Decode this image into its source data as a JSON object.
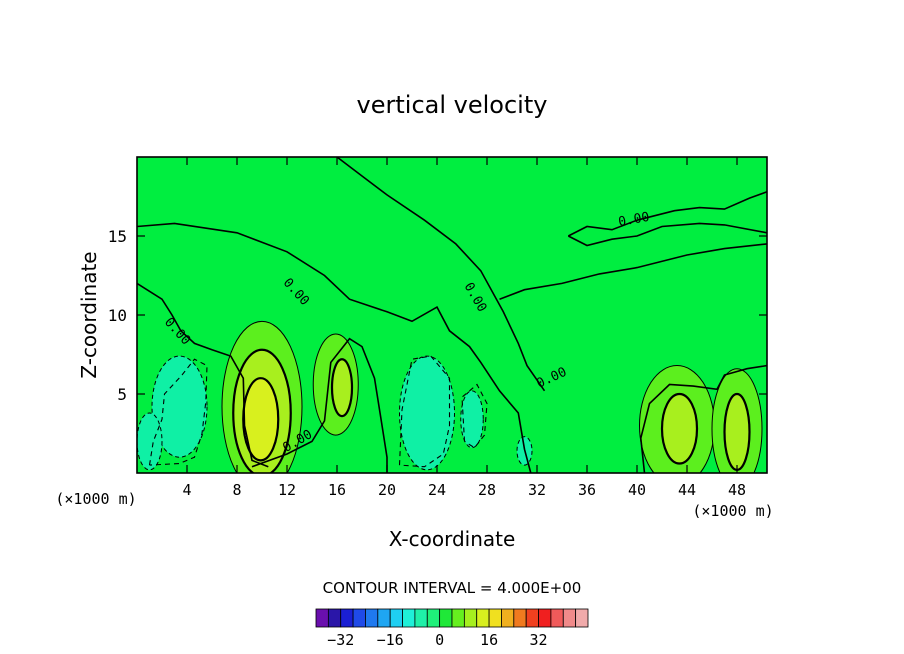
{
  "chart_data": {
    "type": "contour",
    "title": "vertical velocity",
    "xlabel": "X-coordinate",
    "ylabel": "Z-coordinate",
    "x_unit": "(×1000 m)",
    "x_unit_right": "(×1000 m)",
    "xlim": [
      0,
      50.4
    ],
    "ylim": [
      0,
      20
    ],
    "x_ticks": [
      4,
      8,
      12,
      16,
      20,
      24,
      28,
      32,
      36,
      40,
      44,
      48
    ],
    "y_ticks": [
      5,
      10,
      15
    ],
    "contour_interval_text": "CONTOUR INTERVAL = 4.000E+00",
    "contour_interval": 4.0,
    "contour_labels": [
      "0.00",
      "0.00",
      "0.00",
      "0.00",
      "0.00",
      "0.00"
    ],
    "colorbar": {
      "tick_labels": [
        "−32",
        "−16",
        "0",
        "16",
        "32"
      ],
      "tick_values": [
        -32,
        -16,
        0,
        16,
        32
      ],
      "colors": [
        "#6a0fae",
        "#2a16a8",
        "#1a1fd4",
        "#1f4ae8",
        "#1f79ef",
        "#1fa6f2",
        "#1fcff2",
        "#1ff0d8",
        "#1ff0a8",
        "#1ff07a",
        "#1fe838",
        "#66ef1f",
        "#a6ef1f",
        "#d8ef1f",
        "#f0e01f",
        "#f0b01f",
        "#f07a1f",
        "#f0401f",
        "#f01f1f",
        "#f05a5a",
        "#f08a8a",
        "#f0aaaa"
      ]
    },
    "background_fill": "#00ee40",
    "regions": [
      {
        "kind": "shade",
        "value": -8,
        "color": "#0ff0a5",
        "x": 3.4,
        "z": 4.2,
        "rx": 2.2,
        "rz": 3.2
      },
      {
        "kind": "shade",
        "value": -8,
        "color": "#0ff0a5",
        "x": 1.0,
        "z": 2.0,
        "rx": 1.0,
        "rz": 1.8
      },
      {
        "kind": "shade",
        "value": -8,
        "color": "#0ff0a5",
        "x": 23.2,
        "z": 3.8,
        "rx": 2.2,
        "rz": 3.6
      },
      {
        "kind": "shade",
        "value": -8,
        "color": "#0ff0a5",
        "x": 26.8,
        "z": 3.4,
        "rx": 0.9,
        "rz": 1.8
      },
      {
        "kind": "shade",
        "value": -8,
        "color": "#0ff0a5",
        "x": 31.0,
        "z": 1.4,
        "rx": 0.6,
        "rz": 0.9
      },
      {
        "kind": "shade",
        "value": 4,
        "color": "#5cef1e",
        "x": 15.9,
        "z": 5.6,
        "rx": 1.8,
        "rz": 3.2
      },
      {
        "kind": "shade",
        "value": 8,
        "color": "#a8ef1e",
        "x": 16.4,
        "z": 5.4,
        "rx": 0.8,
        "rz": 1.8
      },
      {
        "kind": "shade",
        "value": 4,
        "color": "#5cef1e",
        "x": 10.0,
        "z": 4.2,
        "rx": 3.2,
        "rz": 5.4
      },
      {
        "kind": "shade",
        "value": 8,
        "color": "#a8ef1e",
        "x": 10.0,
        "z": 3.8,
        "rx": 2.3,
        "rz": 4.0
      },
      {
        "kind": "shade",
        "value": 12,
        "color": "#d8f01e",
        "x": 9.9,
        "z": 3.4,
        "rx": 1.4,
        "rz": 2.6
      },
      {
        "kind": "shade",
        "value": 4,
        "color": "#5cef1e",
        "x": 43.2,
        "z": 3.0,
        "rx": 3.0,
        "rz": 3.8
      },
      {
        "kind": "shade",
        "value": 8,
        "color": "#a8ef1e",
        "x": 43.4,
        "z": 2.8,
        "rx": 1.4,
        "rz": 2.2
      },
      {
        "kind": "shade",
        "value": 4,
        "color": "#5cef1e",
        "x": 48.0,
        "z": 2.8,
        "rx": 2.0,
        "rz": 3.8
      },
      {
        "kind": "shade",
        "value": 8,
        "color": "#a8ef1e",
        "x": 48.0,
        "z": 2.6,
        "rx": 1.0,
        "rz": 2.4
      }
    ],
    "zero_contours": [
      [
        [
          0,
          15.6
        ],
        [
          3,
          15.8
        ],
        [
          8,
          15.2
        ],
        [
          12,
          14.0
        ],
        [
          15,
          12.5
        ],
        [
          17,
          11.0
        ],
        [
          20,
          10.2
        ],
        [
          22,
          9.6
        ],
        [
          24,
          10.5
        ],
        [
          25,
          9.0
        ],
        [
          26.6,
          8.0
        ],
        [
          27.5,
          7.0
        ],
        [
          29,
          5.2
        ],
        [
          30.5,
          3.8
        ],
        [
          31,
          1.5
        ],
        [
          31.5,
          0
        ]
      ],
      [
        [
          0,
          12
        ],
        [
          2,
          11.0
        ],
        [
          2.8,
          10.0
        ],
        [
          3.5,
          9.0
        ],
        [
          4.6,
          8.2
        ],
        [
          6,
          7.8
        ],
        [
          7.5,
          7.4
        ],
        [
          8.5,
          6.0
        ],
        [
          8.6,
          3.0
        ],
        [
          9.2,
          0.8
        ],
        [
          10.5,
          0.4
        ]
      ],
      [
        [
          16,
          20
        ],
        [
          18,
          18.8
        ],
        [
          20,
          17.6
        ],
        [
          23,
          16.0
        ],
        [
          25.5,
          14.5
        ],
        [
          27.5,
          12.8
        ],
        [
          29.3,
          10.2
        ],
        [
          30.5,
          8.2
        ],
        [
          31.2,
          6.8
        ],
        [
          32.6,
          5.2
        ]
      ],
      [
        [
          29,
          11.0
        ],
        [
          31,
          11.6
        ],
        [
          34,
          12.0
        ],
        [
          37,
          12.6
        ],
        [
          40,
          13.0
        ],
        [
          44,
          13.8
        ],
        [
          47,
          14.2
        ],
        [
          50.4,
          14.5
        ]
      ],
      [
        [
          34.5,
          15.0
        ],
        [
          36,
          15.6
        ],
        [
          38,
          15.4
        ],
        [
          40,
          16.0
        ],
        [
          43,
          16.6
        ],
        [
          45,
          16.8
        ],
        [
          47,
          16.7
        ],
        [
          49,
          17.4
        ],
        [
          50.4,
          17.8
        ]
      ],
      [
        [
          34.5,
          15.0
        ],
        [
          36,
          14.4
        ],
        [
          38,
          14.8
        ],
        [
          40,
          15.0
        ],
        [
          42,
          15.6
        ],
        [
          45,
          15.8
        ],
        [
          47,
          15.7
        ],
        [
          50.4,
          15.2
        ]
      ],
      [
        [
          40.6,
          0
        ],
        [
          40.3,
          2.2
        ],
        [
          41.0,
          4.4
        ],
        [
          42.6,
          5.6
        ],
        [
          44.5,
          5.5
        ],
        [
          46.4,
          5.3
        ],
        [
          47.0,
          6.2
        ],
        [
          48.8,
          6.6
        ],
        [
          50.4,
          6.8
        ]
      ],
      [
        [
          9.2,
          0.4
        ],
        [
          12,
          1.2
        ],
        [
          14,
          2.0
        ],
        [
          15.0,
          3.3
        ],
        [
          15.5,
          7.0
        ],
        [
          17,
          8.5
        ],
        [
          18,
          8.0
        ],
        [
          19,
          6.0
        ],
        [
          19.5,
          3.5
        ],
        [
          20,
          1.0
        ],
        [
          20,
          0
        ]
      ]
    ],
    "negative_contours": [
      [
        [
          1.0,
          0.5
        ],
        [
          1.3,
          2.0
        ],
        [
          2.0,
          3.4
        ],
        [
          2.2,
          5.0
        ],
        [
          3.6,
          6.2
        ],
        [
          4.6,
          7.2
        ],
        [
          5.6,
          6.8
        ],
        [
          5.5,
          4.5
        ],
        [
          5.2,
          2.5
        ],
        [
          4.6,
          1.0
        ],
        [
          3.4,
          0.6
        ],
        [
          1.0,
          0.5
        ]
      ],
      [
        [
          21,
          0.5
        ],
        [
          21.2,
          4.0
        ],
        [
          22.0,
          7.2
        ],
        [
          23.5,
          7.4
        ],
        [
          25.0,
          6.0
        ],
        [
          25.0,
          3.0
        ],
        [
          24.5,
          1.2
        ],
        [
          23.0,
          0.4
        ],
        [
          21,
          0.5
        ]
      ],
      [
        [
          26.2,
          2.0
        ],
        [
          26.0,
          4.8
        ],
        [
          27.2,
          5.6
        ],
        [
          28.0,
          4.4
        ],
        [
          27.8,
          2.4
        ],
        [
          27.0,
          1.6
        ],
        [
          26.2,
          2.0
        ]
      ]
    ]
  }
}
